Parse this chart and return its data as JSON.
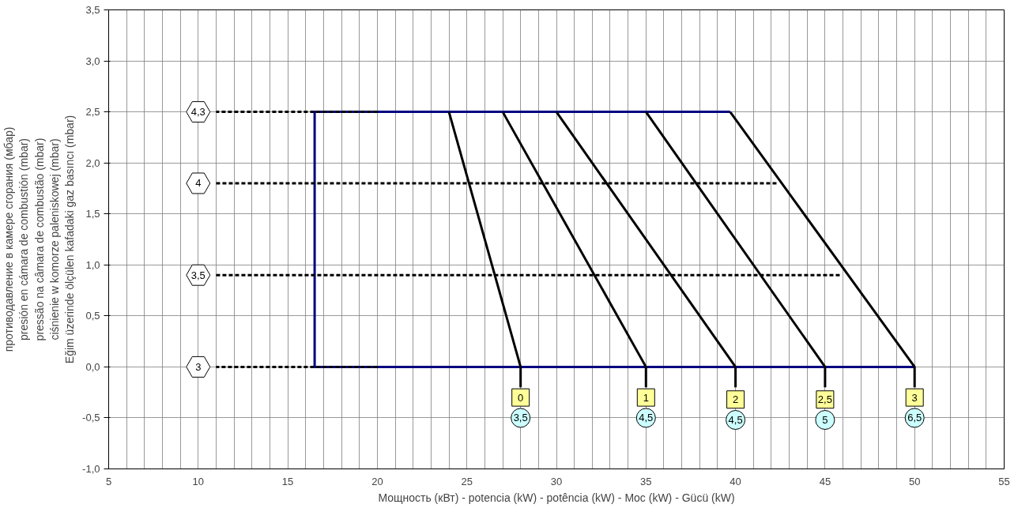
{
  "chart_data": {
    "type": "line",
    "xlabel": "Мощность (кВт) - potencia (kW) - potência (kW) - Moc (kW) - Gücü (kW)",
    "ylabel": "противодавление в камере сгорания (мбар)\npresión en cámara de combustión (mbar)\npressão na câmara de combustão (mbar)\nciśnienie w komorze paleniskowej (mbar)\nEğim üzerinde ölçülen kafadaki gaz basıncı (mbar)",
    "xlim": [
      5,
      55
    ],
    "xticks": [
      5,
      {
        "value": 6,
        "label": null
      },
      {
        "value": 7,
        "label": null
      },
      {
        "value": 8,
        "label": null
      },
      {
        "value": 9,
        "label": null
      },
      10,
      {
        "value": 11,
        "label": null
      },
      {
        "value": 12,
        "label": null
      },
      {
        "value": 13,
        "label": null
      },
      {
        "value": 14,
        "label": null
      },
      15,
      {
        "value": 16,
        "label": null
      },
      {
        "value": 17,
        "label": null
      },
      {
        "value": 18,
        "label": null
      },
      {
        "value": 19,
        "label": null
      },
      20,
      {
        "value": 21,
        "label": null
      },
      {
        "value": 22,
        "label": null
      },
      {
        "value": 23,
        "label": null
      },
      {
        "value": 24,
        "label": null
      },
      25,
      {
        "value": 26,
        "label": null
      },
      {
        "value": 27,
        "label": null
      },
      {
        "value": 28,
        "label": null
      },
      {
        "value": 29,
        "label": null
      },
      30,
      {
        "value": 31,
        "label": null
      },
      {
        "value": 32,
        "label": null
      },
      {
        "value": 33,
        "label": null
      },
      {
        "value": 34,
        "label": null
      },
      35,
      {
        "value": 36,
        "label": null
      },
      {
        "value": 37,
        "label": null
      },
      {
        "value": 38,
        "label": null
      },
      {
        "value": 39,
        "label": null
      },
      40,
      {
        "value": 41,
        "label": null
      },
      {
        "value": 42,
        "label": null
      },
      {
        "value": 43,
        "label": null
      },
      {
        "value": 44,
        "label": null
      },
      45,
      {
        "value": 46,
        "label": null
      },
      {
        "value": 47,
        "label": null
      },
      {
        "value": 48,
        "label": null
      },
      {
        "value": 49,
        "label": null
      },
      50,
      {
        "value": 51,
        "label": null
      },
      {
        "value": 52,
        "label": null
      },
      {
        "value": 53,
        "label": null
      },
      {
        "value": 54,
        "label": null
      },
      55
    ],
    "ylim": [
      -1.0,
      3.5
    ],
    "yticks": [
      {
        "value": -1.0,
        "label": "-1,0"
      },
      {
        "value": -0.5,
        "label": "-0,5"
      },
      {
        "value": 0,
        "label": "0,0"
      },
      {
        "value": 0.5,
        "label": "0,5"
      },
      {
        "value": 1.0,
        "label": "1,0"
      },
      {
        "value": 1.5,
        "label": "1,5"
      },
      {
        "value": 2.0,
        "label": "2,0"
      },
      {
        "value": 2.5,
        "label": "2,5"
      },
      {
        "value": 3.0,
        "label": "3,0"
      },
      {
        "value": 3.5,
        "label": "3,5"
      }
    ],
    "grid": true,
    "marker": "none",
    "series": [
      {
        "color": "#000080",
        "line_style": "solid",
        "x": [
          50,
          16.5,
          16.5,
          39.7
        ],
        "values": [
          0,
          0,
          2.5,
          2.5
        ]
      },
      {
        "color": "#000000",
        "line_style": "dashed",
        "x": [
          20,
          11
        ],
        "values": [
          2.5,
          2.5
        ]
      },
      {
        "color": "#000000",
        "line_style": "dashed",
        "x": [
          11,
          42.3
        ],
        "values": [
          1.8,
          1.8
        ]
      },
      {
        "color": "#000000",
        "line_style": "dashed",
        "x": [
          11,
          45.9
        ],
        "values": [
          0.9,
          0.9
        ]
      },
      {
        "color": "#000000",
        "line_style": "dashed",
        "x": [
          20,
          11
        ],
        "values": [
          0,
          0
        ]
      },
      {
        "color": "#000000",
        "line_style": "solid",
        "x": [
          24,
          28,
          28
        ],
        "values": [
          2.5,
          0,
          -0.2
        ]
      },
      {
        "color": "#000000",
        "line_style": "solid",
        "x": [
          27,
          35,
          35
        ],
        "values": [
          2.5,
          0,
          -0.2
        ]
      },
      {
        "color": "#000000",
        "line_style": "solid",
        "x": [
          30,
          40,
          40
        ],
        "values": [
          2.5,
          0,
          -0.2
        ]
      },
      {
        "color": "#000000",
        "line_style": "solid",
        "x": [
          35,
          45,
          45
        ],
        "values": [
          2.5,
          0,
          -0.2
        ]
      },
      {
        "color": "#000000",
        "line_style": "solid",
        "x": [
          39.7,
          50,
          50
        ],
        "values": [
          2.5,
          0,
          -0.2
        ]
      }
    ],
    "annotations": [
      {
        "text": "4,3",
        "x": 10,
        "y": 2.5
      },
      {
        "text": "4",
        "x": 10,
        "y": 1.8
      },
      {
        "text": "3,5",
        "x": 10,
        "y": 0.9
      },
      {
        "text": "3",
        "x": 10,
        "y": 0
      },
      {
        "text": "0",
        "x": 28,
        "y": -0.3
      },
      {
        "text": "1",
        "x": 35,
        "y": -0.3
      },
      {
        "text": "2",
        "x": 40,
        "y": -0.32
      },
      {
        "text": "2,5",
        "x": 45,
        "y": -0.32
      },
      {
        "text": "3",
        "x": 50,
        "y": -0.3
      },
      {
        "text": "3,5",
        "x": 28,
        "y": -0.5
      },
      {
        "text": "4,5",
        "x": 35,
        "y": -0.5
      },
      {
        "text": "4,5",
        "x": 40,
        "y": -0.52
      },
      {
        "text": "5",
        "x": 45,
        "y": -0.52
      },
      {
        "text": "6,5",
        "x": 50,
        "y": -0.5
      }
    ]
  }
}
